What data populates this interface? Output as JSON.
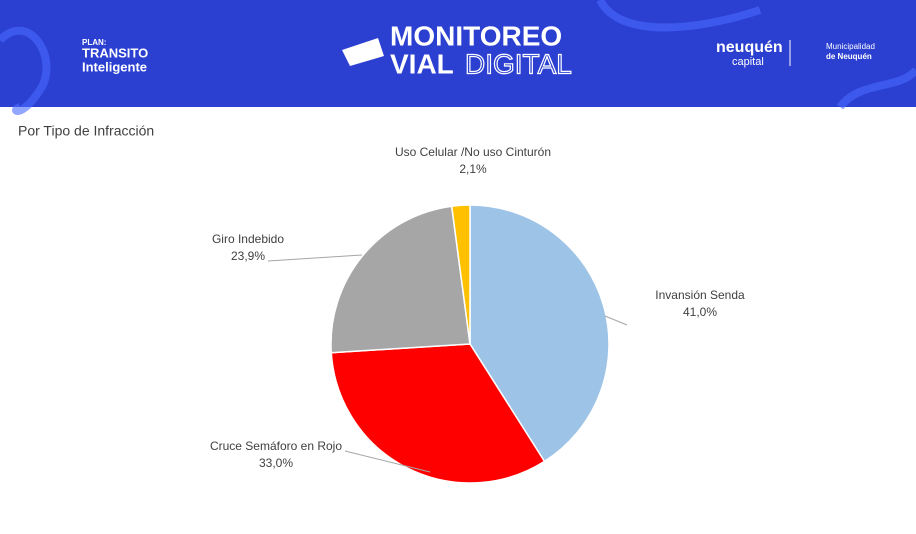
{
  "header": {
    "plan": "PLAN:",
    "plan_name": "TRANSITO",
    "plan_sub": "Inteligente",
    "title_1": "MONITOREO",
    "title_2a": "VIAL",
    "title_2b": "DIGITAL",
    "city": "neuquén",
    "city_sub": "capital",
    "muni_1": "Municipalidad",
    "muni_2": "de Neuquén"
  },
  "chart_data": {
    "type": "pie",
    "title": "Por Tipo de Infracción",
    "categories": [
      "Invansión Senda",
      "Cruce Semáforo en Rojo",
      "Giro Indebido",
      "Uso Celular /No uso Cinturón"
    ],
    "values": [
      41.0,
      33.0,
      23.9,
      2.1
    ],
    "value_labels": [
      "41,0%",
      "33,0%",
      "23,9%",
      "2,1%"
    ],
    "colors": [
      "#9dc3e6",
      "#ff0000",
      "#a6a6a6",
      "#ffc000"
    ]
  }
}
